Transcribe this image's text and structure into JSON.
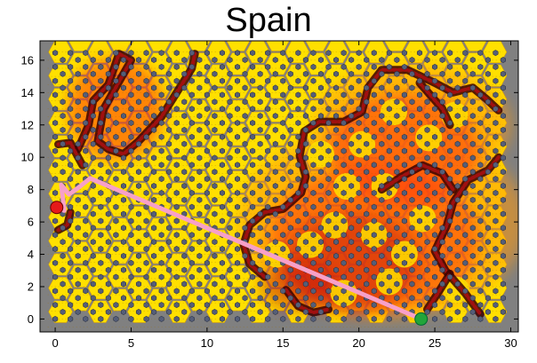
{
  "title": "Spain",
  "colors": {
    "background": "#ffffff",
    "plot_bg": "#808080",
    "hex_yellow": "#ffe000",
    "hex_orange": "#ff9a10",
    "hex_red": "#ff3a10",
    "hex_darkred": "#c01010",
    "border_dark": "#3a0000",
    "node": "#555e78",
    "path": "#f7a0c8",
    "start_marker": "#e61a1a",
    "goal_marker": "#22a53a"
  },
  "chart_data": {
    "type": "hex-grid-map",
    "title": "Spain",
    "xlim": [
      -1,
      30.5
    ],
    "ylim": [
      -0.8,
      17.2
    ],
    "xticks": [
      0,
      5,
      10,
      15,
      20,
      25,
      30
    ],
    "yticks": [
      0,
      2,
      4,
      6,
      8,
      10,
      12,
      14,
      16
    ],
    "start_point": [
      0.1,
      6.9
    ],
    "goal_point": [
      24.1,
      0.0
    ],
    "path": [
      [
        0.1,
        6.9
      ],
      [
        0.6,
        6.7
      ],
      [
        0.4,
        8.3
      ],
      [
        0.9,
        7.7
      ],
      [
        1.5,
        8.1
      ],
      [
        2.3,
        8.7
      ],
      [
        24.1,
        0.0
      ]
    ],
    "hazard_regions": [
      {
        "level": "outer",
        "center": [
          21.5,
          6.0
        ],
        "rx": 9.5,
        "ry": 6.0
      },
      {
        "level": "outer",
        "center": [
          23.5,
          12.0
        ],
        "rx": 6.5,
        "ry": 3.8
      },
      {
        "level": "medium",
        "center": [
          21.0,
          5.0
        ],
        "rx": 7.0,
        "ry": 4.5
      },
      {
        "level": "medium",
        "center": [
          23.0,
          10.5
        ],
        "rx": 5.0,
        "ry": 3.5
      },
      {
        "level": "medium",
        "center": [
          4.0,
          13.0
        ],
        "rx": 3.2,
        "ry": 3.2
      },
      {
        "level": "inner",
        "center": [
          19.5,
          3.5
        ],
        "rx": 4.5,
        "ry": 3.0
      },
      {
        "level": "inner",
        "center": [
          16.0,
          2.0
        ],
        "rx": 2.5,
        "ry": 1.5
      }
    ],
    "barrier_walls": [
      [
        [
          1.5,
          10.5
        ],
        [
          2.2,
          12.0
        ],
        [
          2.5,
          13.5
        ],
        [
          3.5,
          14.5
        ],
        [
          4.2,
          16.4
        ],
        [
          5.0,
          16.0
        ],
        [
          3.2,
          13.0
        ],
        [
          2.8,
          11.0
        ],
        [
          3.5,
          10.5
        ],
        [
          4.5,
          10.2
        ],
        [
          5.5,
          11.0
        ],
        [
          7.0,
          12.5
        ],
        [
          8.0,
          14.0
        ],
        [
          9.0,
          15.5
        ],
        [
          9.2,
          16.4
        ]
      ],
      [
        [
          0.2,
          10.8
        ],
        [
          1.0,
          10.9
        ],
        [
          1.4,
          10.2
        ],
        [
          1.8,
          9.5
        ]
      ],
      [
        [
          0.2,
          5.5
        ],
        [
          0.8,
          5.8
        ],
        [
          1.0,
          6.6
        ]
      ],
      [
        [
          13.8,
          2.6
        ],
        [
          12.8,
          3.4
        ],
        [
          12.4,
          4.6
        ],
        [
          12.8,
          5.8
        ],
        [
          13.8,
          6.6
        ],
        [
          15.0,
          6.8
        ],
        [
          16.2,
          7.8
        ],
        [
          16.5,
          8.8
        ],
        [
          16.1,
          10.1
        ],
        [
          16.4,
          11.6
        ],
        [
          17.4,
          12.2
        ],
        [
          19.0,
          12.2
        ],
        [
          20.2,
          12.8
        ],
        [
          20.6,
          14.3
        ],
        [
          21.5,
          15.4
        ],
        [
          23.2,
          15.4
        ],
        [
          25.0,
          14.6
        ],
        [
          26.2,
          14.0
        ],
        [
          27.5,
          14.3
        ],
        [
          28.4,
          13.6
        ],
        [
          29.2,
          12.9
        ]
      ],
      [
        [
          24.0,
          14.6
        ],
        [
          25.5,
          13.0
        ],
        [
          26.0,
          12.0
        ]
      ],
      [
        [
          29.2,
          10.0
        ],
        [
          28.5,
          9.2
        ],
        [
          27.2,
          8.6
        ],
        [
          26.2,
          7.2
        ],
        [
          25.8,
          5.8
        ],
        [
          25.0,
          4.2
        ],
        [
          25.7,
          3.0
        ],
        [
          27.0,
          1.6
        ],
        [
          28.0,
          0.3
        ]
      ],
      [
        [
          15.2,
          1.8
        ],
        [
          16.0,
          0.8
        ],
        [
          17.0,
          0.4
        ],
        [
          18.0,
          0.6
        ]
      ],
      [
        [
          21.5,
          8.0
        ],
        [
          22.8,
          8.8
        ],
        [
          24.2,
          9.5
        ],
        [
          25.5,
          9.0
        ],
        [
          26.2,
          8.0
        ]
      ],
      [
        [
          24.5,
          0.6
        ],
        [
          25.2,
          1.6
        ],
        [
          26.0,
          2.8
        ]
      ]
    ]
  }
}
